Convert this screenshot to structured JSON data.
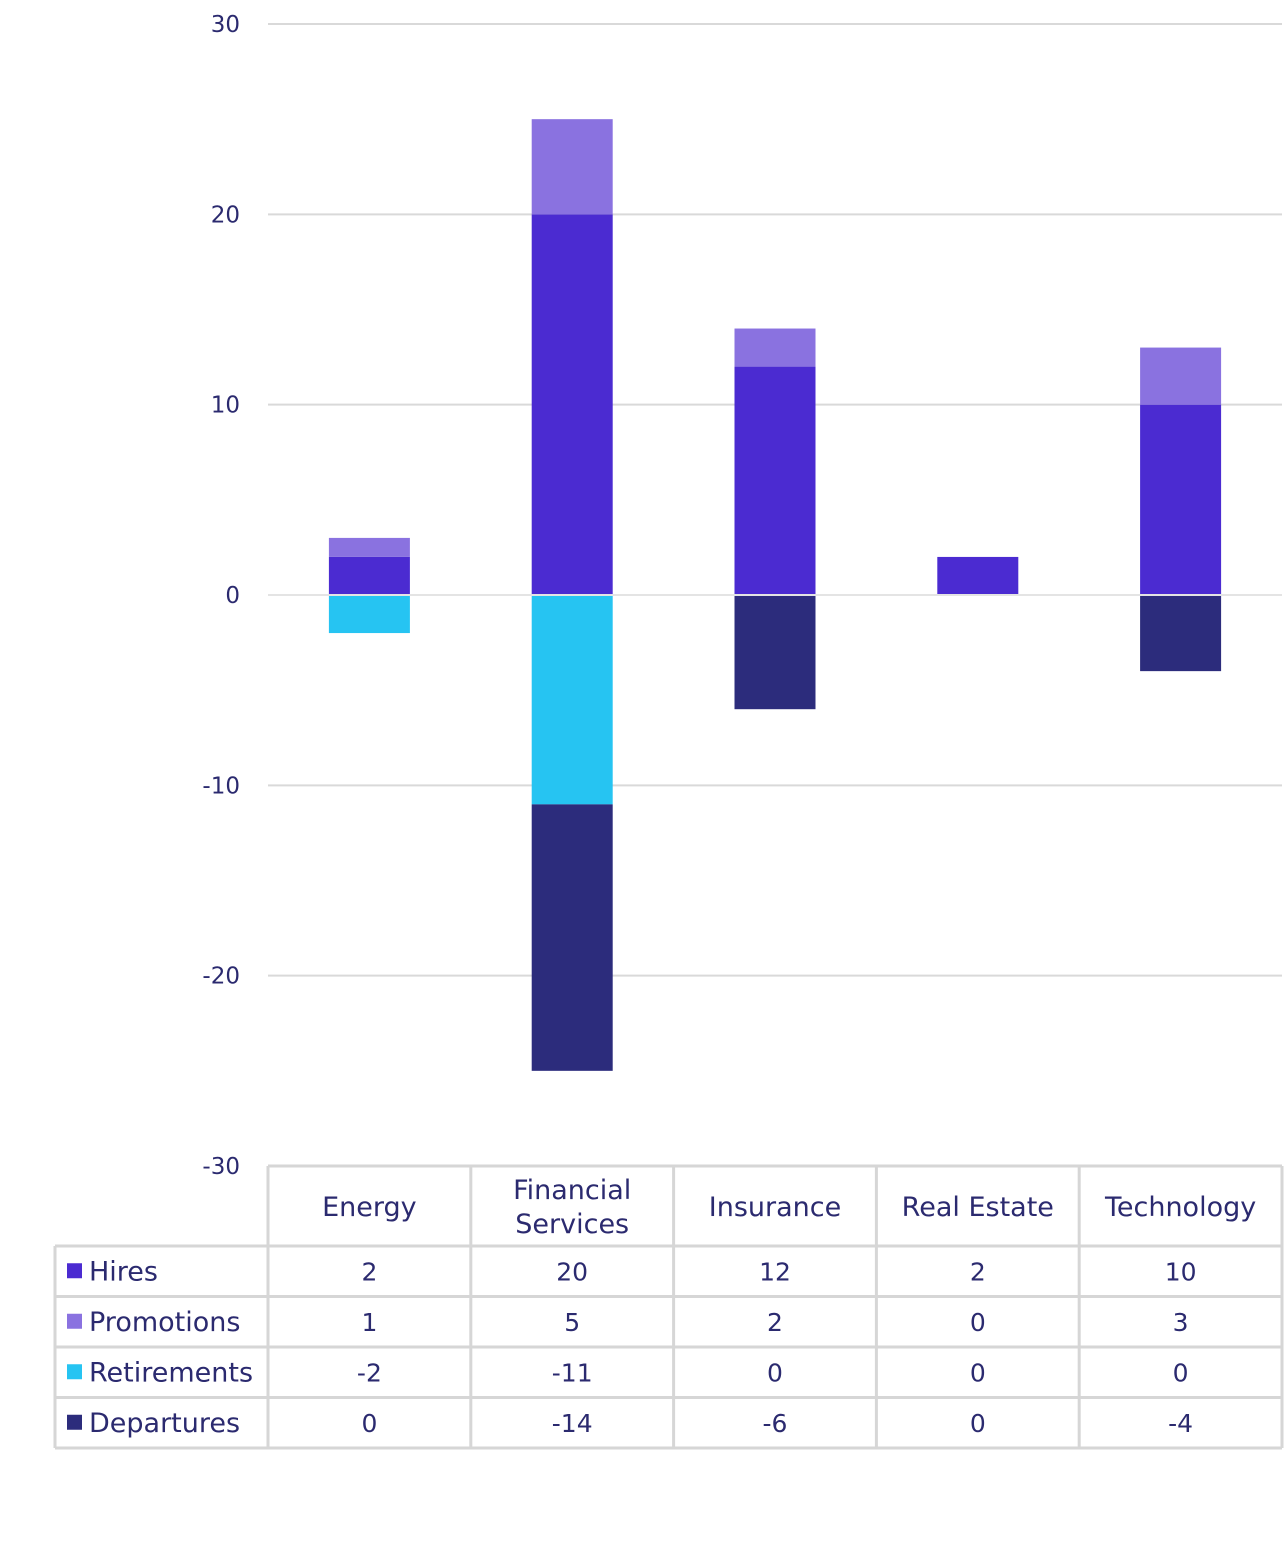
{
  "chart_data": {
    "type": "bar",
    "stacked": true,
    "categories": [
      "Energy",
      "Financial Services",
      "Insurance",
      "Real Estate",
      "Technology"
    ],
    "category_lines": [
      [
        "Energy"
      ],
      [
        "Financial",
        "Services"
      ],
      [
        "Insurance"
      ],
      [
        "Real Estate"
      ],
      [
        "Technology"
      ]
    ],
    "series": [
      {
        "name": "Hires",
        "color": "#4b2bd1",
        "values": [
          2,
          20,
          12,
          2,
          10
        ]
      },
      {
        "name": "Promotions",
        "color": "#8a72e0",
        "values": [
          1,
          5,
          2,
          0,
          3
        ]
      },
      {
        "name": "Retirements",
        "color": "#26c4f2",
        "values": [
          -2,
          -11,
          0,
          0,
          0
        ]
      },
      {
        "name": "Departures",
        "color": "#2c2c7c",
        "values": [
          0,
          -14,
          -6,
          0,
          -4
        ]
      }
    ],
    "ylim": [
      -30,
      30
    ],
    "yticks": [
      30,
      20,
      10,
      0,
      -10,
      -20,
      -30
    ],
    "ytick_labels": [
      "30",
      "20",
      "10",
      "0",
      "-10",
      "-20",
      "-30"
    ],
    "grid": true,
    "legend": "data-table",
    "title": "",
    "xlabel": "",
    "ylabel": ""
  }
}
